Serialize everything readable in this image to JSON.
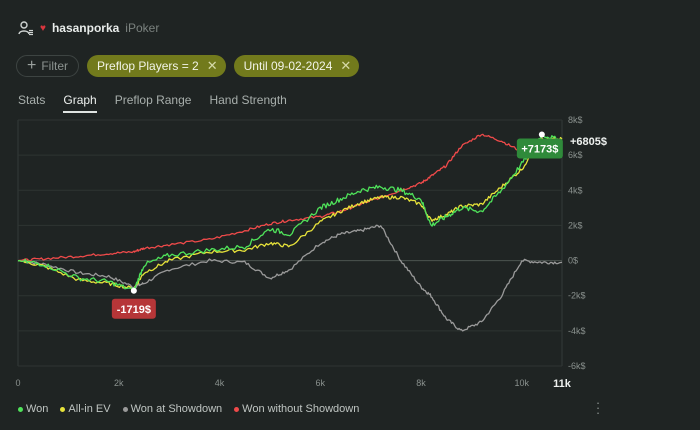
{
  "header": {
    "username": "hasanporka",
    "network": "iPoker"
  },
  "filters": {
    "add_label": "Filter",
    "active": [
      {
        "label": "Preflop Players = 2"
      },
      {
        "label": "Until 09-02-2024"
      }
    ]
  },
  "tabs": [
    {
      "label": "Stats",
      "active": false
    },
    {
      "label": "Graph",
      "active": true
    },
    {
      "label": "Preflop Range",
      "active": false
    },
    {
      "label": "Hand Strength",
      "active": false
    }
  ],
  "chart_data": {
    "type": "line",
    "x_ticks": [
      "0",
      "2k",
      "4k",
      "6k",
      "8k",
      "10k"
    ],
    "x_max_label": "11k",
    "y_ticks": [
      "8k$",
      "6k$",
      "4k$",
      "2k$",
      "0$",
      "-2k$",
      "-4k$",
      "-6k$"
    ],
    "xlim": [
      0,
      10800
    ],
    "ylim": [
      -6000,
      8000
    ],
    "badges": {
      "min": "-1719$",
      "max": "+7173$",
      "final": "+6805$"
    },
    "colors": {
      "won": "#4fe35a",
      "allin_ev": "#e6e23a",
      "showdown": "#9a9a9a",
      "nonshowdown": "#ef4a4a",
      "min_badge": "#b63638",
      "max_badge": "#2f8a3a"
    },
    "series": [
      {
        "name": "Won",
        "key": "won",
        "x": [
          0,
          500,
          1200,
          1800,
          2300,
          2500,
          3000,
          3800,
          4500,
          5000,
          5400,
          6000,
          6400,
          6800,
          7200,
          7600,
          8000,
          8200,
          8500,
          8800,
          9200,
          9600,
          10000,
          10400,
          10800
        ],
        "values": [
          0,
          -200,
          -1000,
          -1200,
          -1719,
          -250,
          300,
          600,
          800,
          1800,
          1500,
          3000,
          3500,
          4000,
          4200,
          4000,
          3500,
          2000,
          2500,
          3000,
          2800,
          4000,
          5500,
          7173,
          6805
        ]
      },
      {
        "name": "All-in EV",
        "key": "allin_ev",
        "x": [
          0,
          500,
          1200,
          1800,
          2300,
          2500,
          3000,
          3800,
          4500,
          5000,
          5400,
          6000,
          6400,
          6800,
          7200,
          7600,
          8000,
          8200,
          8500,
          8800,
          9200,
          9600,
          10000,
          10400,
          10800
        ],
        "values": [
          0,
          -300,
          -1100,
          -1300,
          -1600,
          -700,
          0,
          500,
          600,
          1000,
          800,
          2200,
          2800,
          3300,
          3600,
          3600,
          3200,
          2300,
          2600,
          3100,
          3200,
          4200,
          5200,
          6900,
          6900
        ]
      },
      {
        "name": "Won at Showdown",
        "key": "showdown",
        "x": [
          0,
          500,
          1200,
          1800,
          2300,
          2500,
          3000,
          3800,
          4500,
          5000,
          5400,
          6000,
          6400,
          6800,
          7200,
          7600,
          8000,
          8200,
          8500,
          8800,
          9200,
          9600,
          10000,
          10400,
          10800
        ],
        "values": [
          0,
          -200,
          -700,
          -900,
          -1500,
          -1300,
          -500,
          0,
          -100,
          -1000,
          -500,
          1000,
          1500,
          1700,
          2000,
          0,
          -1500,
          -2000,
          -3300,
          -4000,
          -3500,
          -2000,
          0,
          -100,
          -100
        ]
      },
      {
        "name": "Won without Showdown",
        "key": "nonshowdown",
        "x": [
          0,
          500,
          1200,
          1800,
          2300,
          2500,
          3000,
          3800,
          4500,
          5000,
          5400,
          6000,
          6400,
          6800,
          7200,
          7600,
          8000,
          8200,
          8500,
          8800,
          9200,
          9600,
          10000,
          10400,
          10800
        ],
        "values": [
          0,
          100,
          250,
          400,
          500,
          700,
          900,
          1200,
          1700,
          2100,
          2300,
          2500,
          2800,
          3200,
          3600,
          4000,
          4400,
          4800,
          5400,
          6500,
          7200,
          6800,
          6200,
          6400,
          6500
        ]
      }
    ]
  }
}
